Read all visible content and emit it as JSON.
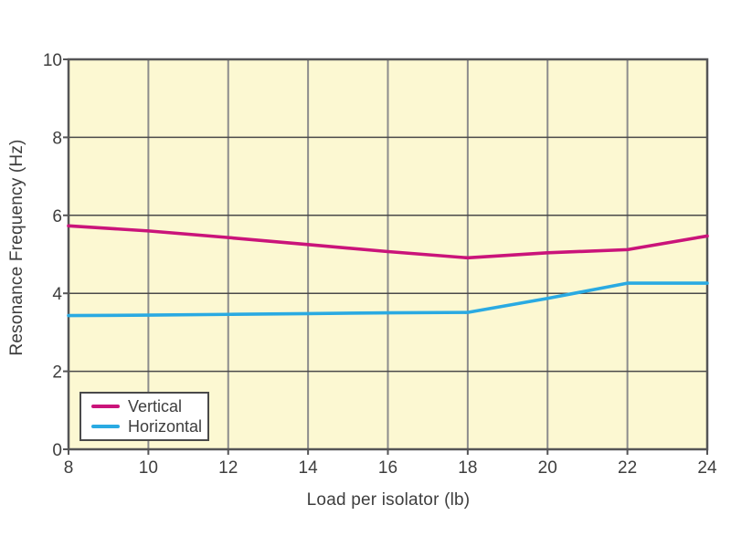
{
  "chart_data": {
    "type": "line",
    "title": "",
    "xlabel": "Load per isolator (lb)",
    "ylabel": "Resonance Frequency (Hz)",
    "x": [
      8,
      10,
      12,
      14,
      16,
      18,
      20,
      22,
      24
    ],
    "series": [
      {
        "name": "Vertical",
        "color": "#ca147a",
        "values": [
          5.73,
          5.6,
          5.43,
          5.25,
          5.07,
          4.91,
          5.04,
          5.12,
          5.47
        ]
      },
      {
        "name": "Horizontal",
        "color": "#2aaae2",
        "values": [
          3.43,
          3.44,
          3.46,
          3.48,
          3.5,
          3.51,
          3.87,
          4.26,
          4.26
        ]
      }
    ],
    "xlim": [
      8,
      24
    ],
    "ylim": [
      0,
      10
    ],
    "xticks": [
      8,
      10,
      12,
      14,
      16,
      18,
      20,
      22,
      24
    ],
    "yticks": [
      0,
      2,
      4,
      6,
      8,
      10
    ],
    "grid": true,
    "legend_position": "bottom-left",
    "colors": {
      "plot_background": "#fcf8d2",
      "vertical_gridline": "#8c8c8c",
      "horizontal_gridline": "#4a4a4a",
      "plot_border": "#555557",
      "tick_text": "#3e3e3e"
    }
  }
}
